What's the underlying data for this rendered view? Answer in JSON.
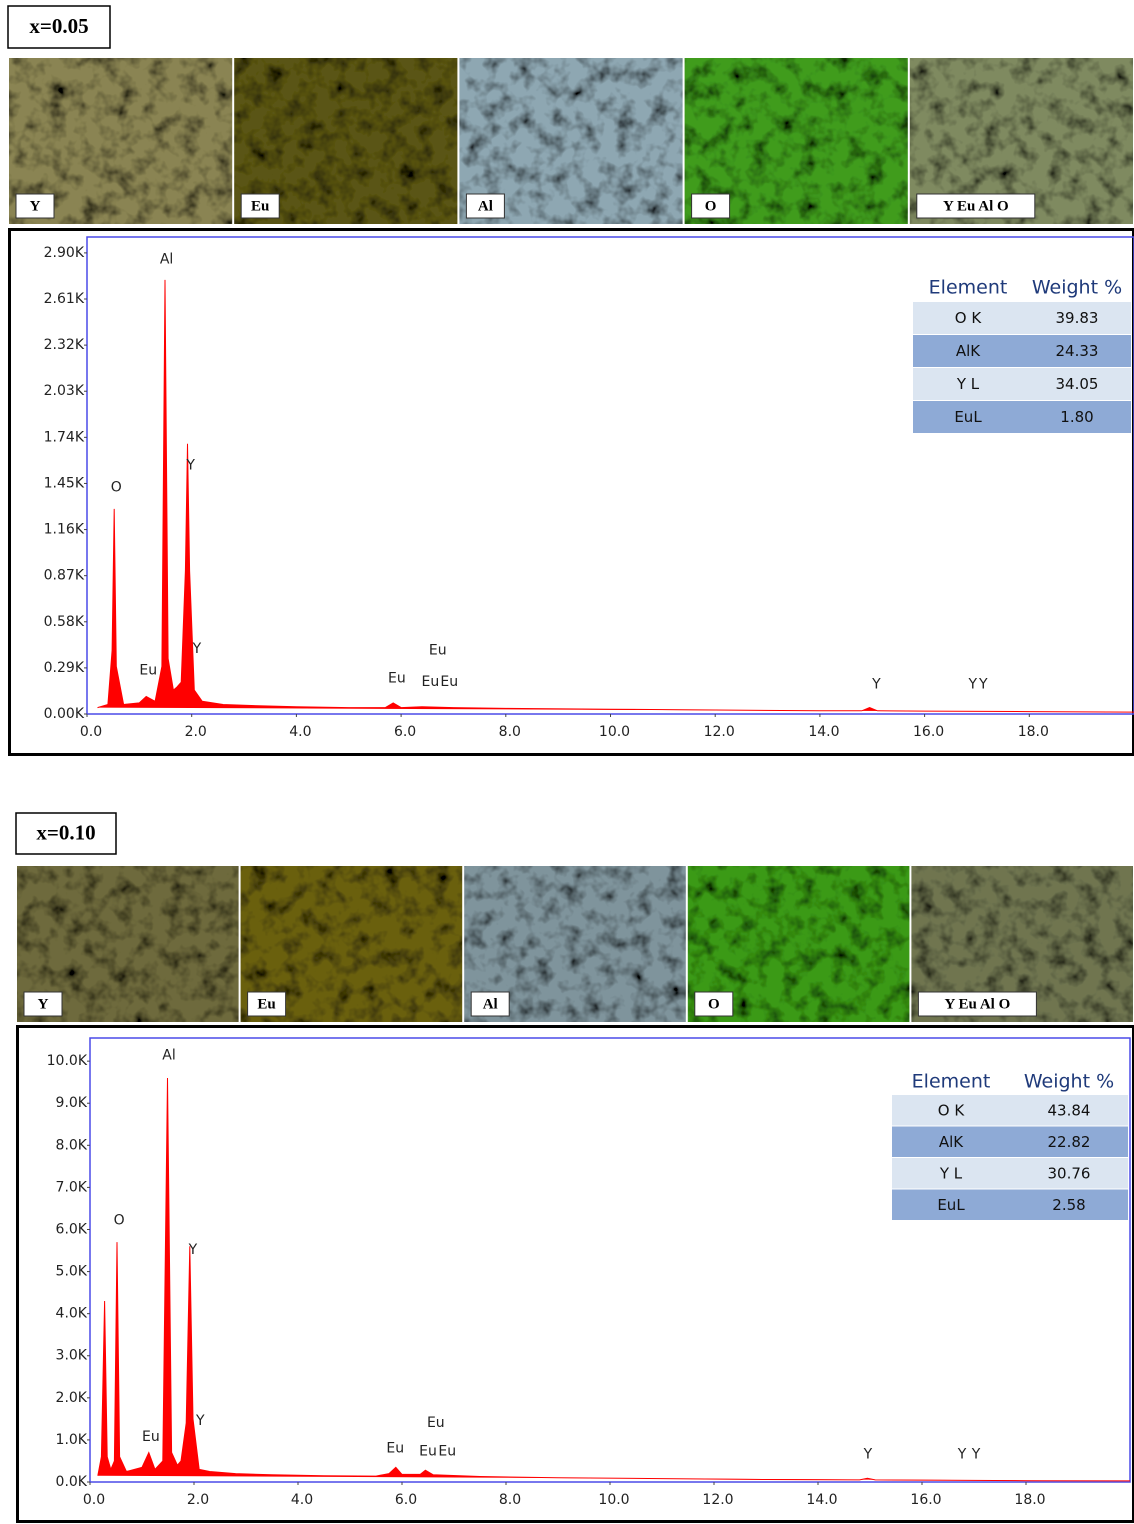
{
  "chart_data": [
    {
      "type": "area",
      "panel_label": "x=0.05",
      "map_labels": [
        "Y",
        "Eu",
        "Al",
        "O",
        "Y Eu Al O"
      ],
      "map_colors": [
        "#8a8452",
        "#5a5512",
        "#8ea7b2",
        "#3f9c1c",
        "#7f8a60"
      ],
      "color": "#ff0000",
      "x": [
        0.2,
        0.4,
        0.48,
        0.52,
        0.56,
        0.7,
        1.0,
        1.13,
        1.3,
        1.43,
        1.49,
        1.55,
        1.65,
        1.72,
        1.8,
        1.88,
        1.92,
        1.96,
        2.05,
        2.2,
        2.6,
        3.0,
        4.0,
        5.0,
        5.7,
        5.85,
        6.0,
        6.4,
        7.0,
        8.0,
        10.0,
        12.0,
        14.0,
        14.8,
        14.95,
        15.1,
        16.0,
        18.0,
        20.0
      ],
      "values": [
        40,
        60,
        400,
        1290,
        300,
        60,
        70,
        110,
        80,
        300,
        2730,
        350,
        150,
        170,
        200,
        900,
        1700,
        900,
        150,
        80,
        60,
        55,
        45,
        40,
        40,
        70,
        40,
        45,
        40,
        35,
        30,
        25,
        20,
        20,
        40,
        20,
        18,
        15,
        12
      ],
      "xlim": [
        0,
        20
      ],
      "ylim": [
        0,
        3000
      ],
      "xticks": [
        {
          "value": 0,
          "label": "0.0"
        },
        {
          "value": 2,
          "label": "2.0"
        },
        {
          "value": 4,
          "label": "4.0"
        },
        {
          "value": 6,
          "label": "6.0"
        },
        {
          "value": 8,
          "label": "8.0"
        },
        {
          "value": 10,
          "label": "10.0"
        },
        {
          "value": 12,
          "label": "12.0"
        },
        {
          "value": 14,
          "label": "14.0"
        },
        {
          "value": 16,
          "label": "16.0"
        },
        {
          "value": 18,
          "label": "18.0"
        }
      ],
      "yticks": [
        {
          "value": 0,
          "label": "0.00K"
        },
        {
          "value": 290,
          "label": "0.29K"
        },
        {
          "value": 580,
          "label": "0.58K"
        },
        {
          "value": 870,
          "label": "0.87K"
        },
        {
          "value": 1160,
          "label": "1.16K"
        },
        {
          "value": 1450,
          "label": "1.45K"
        },
        {
          "value": 1740,
          "label": "1.74K"
        },
        {
          "value": 2030,
          "label": "2.03K"
        },
        {
          "value": 2320,
          "label": "2.32K"
        },
        {
          "value": 2610,
          "label": "2.61K"
        },
        {
          "value": 2900,
          "label": "2.90K"
        }
      ],
      "annotations": [
        {
          "text": "Al",
          "x": 1.52,
          "y": 2857
        },
        {
          "text": "O",
          "x": 0.56,
          "y": 1425
        },
        {
          "text": "Y",
          "x": 1.98,
          "y": 1562
        },
        {
          "text": "Eu",
          "x": 1.17,
          "y": 274
        },
        {
          "text": "Y",
          "x": 2.1,
          "y": 410
        },
        {
          "text": "Eu",
          "x": 5.92,
          "y": 224
        },
        {
          "text": "Eu",
          "x": 6.7,
          "y": 398
        },
        {
          "text": "Eu",
          "x": 6.56,
          "y": 200
        },
        {
          "text": "Eu",
          "x": 6.92,
          "y": 200
        },
        {
          "text": "Y",
          "x": 15.08,
          "y": 187
        },
        {
          "text": "Y",
          "x": 16.92,
          "y": 187
        },
        {
          "text": "Y",
          "x": 17.12,
          "y": 187
        }
      ],
      "table": {
        "header": [
          "Element",
          "Weight %"
        ],
        "rows": [
          [
            "O K",
            "39.83"
          ],
          [
            "AlK",
            "24.33"
          ],
          [
            "Y L",
            "34.05"
          ],
          [
            "EuL",
            "1.80"
          ]
        ]
      }
    },
    {
      "type": "area",
      "panel_label": "x=0.10",
      "map_labels": [
        "Y",
        "Eu",
        "Al",
        "O",
        "Y Eu Al O"
      ],
      "map_colors": [
        "#6e6a3c",
        "#6a6010",
        "#7f949c",
        "#3a9a14",
        "#6f7550"
      ],
      "color": "#ff0000",
      "x": [
        0.15,
        0.22,
        0.28,
        0.33,
        0.4,
        0.47,
        0.52,
        0.57,
        0.7,
        1.0,
        1.13,
        1.25,
        1.4,
        1.49,
        1.57,
        1.68,
        1.75,
        1.85,
        1.92,
        1.98,
        2.1,
        2.3,
        2.8,
        3.5,
        4.5,
        5.5,
        5.75,
        5.88,
        6.0,
        6.35,
        6.45,
        6.6,
        7.5,
        9,
        11,
        13,
        14.8,
        14.95,
        15.1,
        16.5,
        18,
        20
      ],
      "values": [
        150,
        600,
        4300,
        600,
        300,
        500,
        5700,
        600,
        250,
        350,
        700,
        300,
        500,
        9600,
        700,
        400,
        500,
        1400,
        5600,
        1500,
        300,
        250,
        200,
        170,
        150,
        140,
        200,
        350,
        180,
        180,
        280,
        170,
        130,
        100,
        80,
        60,
        50,
        90,
        50,
        40,
        30,
        25
      ],
      "xlim": [
        0,
        20
      ],
      "ylim": [
        0,
        10550
      ],
      "xticks": [
        {
          "value": 0,
          "label": "0.0"
        },
        {
          "value": 2,
          "label": "2.0"
        },
        {
          "value": 4,
          "label": "4.0"
        },
        {
          "value": 6,
          "label": "6.0"
        },
        {
          "value": 8,
          "label": "8.0"
        },
        {
          "value": 10,
          "label": "10.0"
        },
        {
          "value": 12,
          "label": "12.0"
        },
        {
          "value": 14,
          "label": "14.0"
        },
        {
          "value": 16,
          "label": "16.0"
        },
        {
          "value": 18,
          "label": "18.0"
        }
      ],
      "yticks": [
        {
          "value": 0,
          "label": "0.0K"
        },
        {
          "value": 1000,
          "label": "1.0K"
        },
        {
          "value": 2000,
          "label": "2.0K"
        },
        {
          "value": 3000,
          "label": "3.0K"
        },
        {
          "value": 4000,
          "label": "4.0K"
        },
        {
          "value": 5000,
          "label": "5.0K"
        },
        {
          "value": 6000,
          "label": "6.0K"
        },
        {
          "value": 7000,
          "label": "7.0K"
        },
        {
          "value": 8000,
          "label": "8.0K"
        },
        {
          "value": 9000,
          "label": "9.0K"
        },
        {
          "value": 10000,
          "label": "10.0K"
        }
      ],
      "annotations": [
        {
          "text": "Al",
          "x": 1.52,
          "y": 10140
        },
        {
          "text": "O",
          "x": 0.56,
          "y": 6215
        },
        {
          "text": "Y",
          "x": 1.98,
          "y": 5514
        },
        {
          "text": "Eu",
          "x": 1.17,
          "y": 1075
        },
        {
          "text": "Y",
          "x": 2.12,
          "y": 1449
        },
        {
          "text": "Eu",
          "x": 5.87,
          "y": 794
        },
        {
          "text": "Eu",
          "x": 6.65,
          "y": 1402
        },
        {
          "text": "Eu",
          "x": 6.5,
          "y": 724
        },
        {
          "text": "Eu",
          "x": 6.87,
          "y": 724
        },
        {
          "text": "Y",
          "x": 14.96,
          "y": 654
        },
        {
          "text": "Y",
          "x": 16.77,
          "y": 654
        },
        {
          "text": "Y",
          "x": 17.04,
          "y": 654
        }
      ],
      "table": {
        "header": [
          "Element",
          "Weight %"
        ],
        "rows": [
          [
            "O K",
            "43.84"
          ],
          [
            "AlK",
            "22.82"
          ],
          [
            "Y L",
            "30.76"
          ],
          [
            "EuL",
            "2.58"
          ]
        ]
      }
    }
  ]
}
